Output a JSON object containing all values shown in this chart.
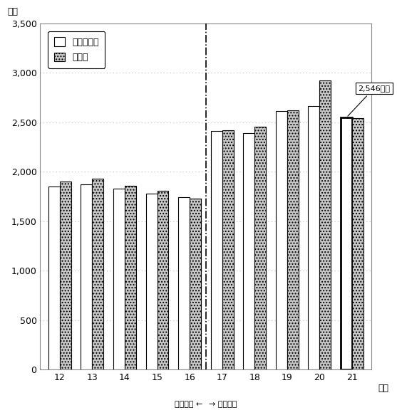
{
  "years": [
    12,
    13,
    14,
    15,
    16,
    17,
    18,
    19,
    20,
    21
  ],
  "budget": [
    1850,
    1870,
    1830,
    1780,
    1740,
    2410,
    2390,
    2610,
    2660,
    2546
  ],
  "settlement": [
    1900,
    1930,
    1860,
    1810,
    1730,
    2415,
    2455,
    2620,
    2920,
    2540
  ],
  "ylim": [
    0,
    3500
  ],
  "yticks": [
    0,
    500,
    1000,
    1500,
    2000,
    2500,
    3000,
    3500
  ],
  "ylabel": "億円",
  "xlabel": "年度",
  "legend_budget": "当初予算顕",
  "legend_settlement": "決算顕",
  "annotation_text": "2,546億円",
  "left_label": "旧浜松市 ←",
  "right_label": "→ 新浜松市",
  "bar_width": 0.35,
  "budget_color": "#ffffff",
  "budget_edge": "#000000",
  "settlement_color": "#c8c8c8",
  "settlement_hatch": "....",
  "settlement_edge": "#000000",
  "grid_color": "#bbbbbb",
  "background_color": "#ffffff"
}
